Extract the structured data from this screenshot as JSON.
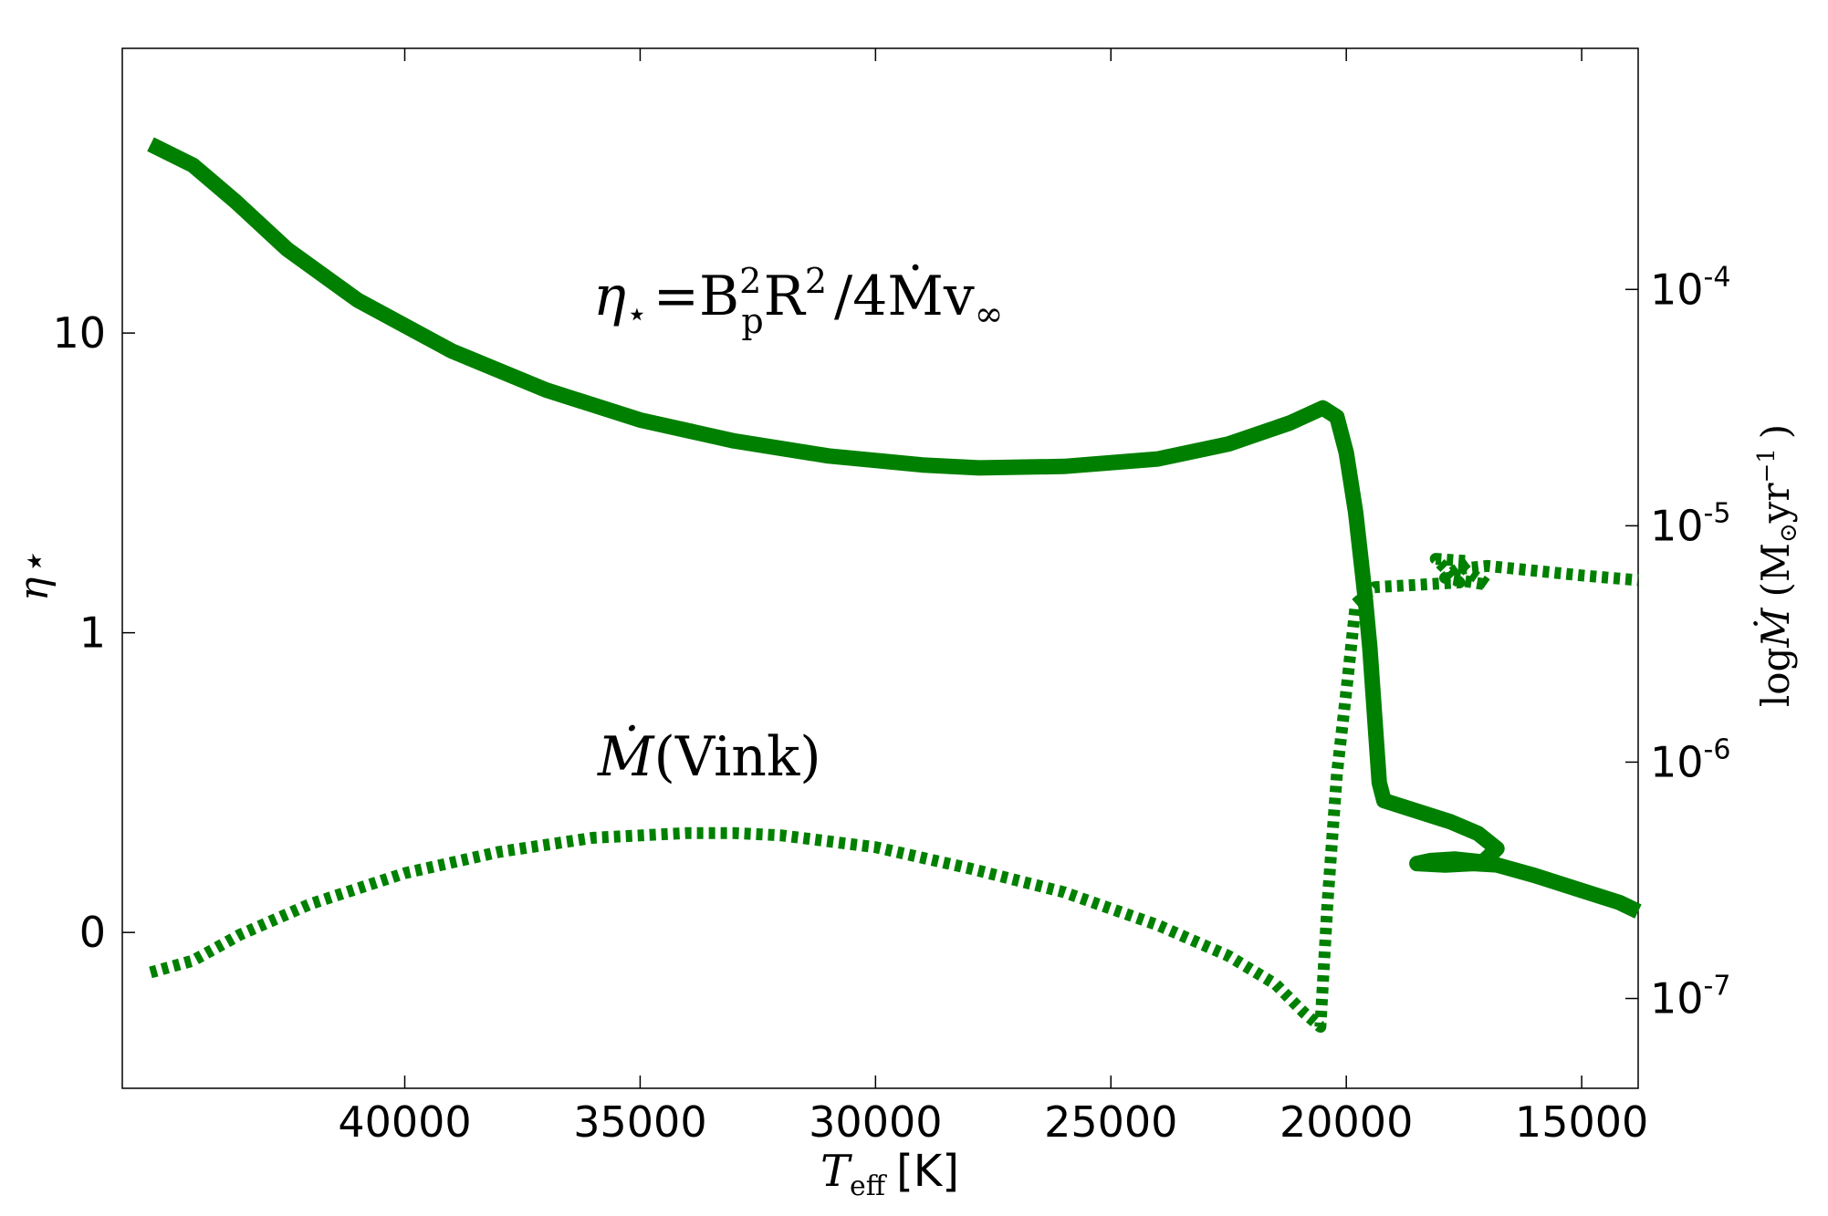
{
  "chart_data": {
    "type": "line",
    "xlabel": {
      "symbol": "T",
      "subscript": "eff",
      "unit": "[K]"
    },
    "x_range": [
      46000,
      13800
    ],
    "x_ticks": [
      "40000",
      "35000",
      "30000",
      "25000",
      "20000",
      "15000"
    ],
    "x_tick_values": [
      40000,
      35000,
      30000,
      25000,
      20000,
      15000
    ],
    "left_axis": {
      "label": "η⋆",
      "range": [
        -0.52,
        2.95
      ],
      "ticks": [
        "10",
        "1",
        "0"
      ],
      "tick_values": [
        2,
        1,
        0
      ]
    },
    "right_axis": {
      "label": {
        "prefix": "log",
        "symbol": "Ṁ",
        "unit_open": "(M",
        "unit_sub": "⊙",
        "unit_mid": "yr",
        "unit_sup": "−1",
        "unit_close": ")"
      },
      "ticks": [
        {
          "base": "10",
          "exp": "-4"
        },
        {
          "base": "10",
          "exp": "-5"
        },
        {
          "base": "10",
          "exp": "-6"
        },
        {
          "base": "10",
          "exp": "-7"
        }
      ],
      "tick_log_values": [
        -4,
        -5,
        -6,
        -7
      ],
      "log_range": [
        -7.38,
        -2.98
      ]
    },
    "annotations": {
      "eta_formula": {
        "lhs": "η",
        "lhs_sub": "⋆",
        "eq": "=B",
        "b_sup": "2",
        "b_sub": "p",
        "r": "R",
        "r_sup": "2",
        "mid": "/4",
        "mdot": "Ṁ",
        "v": "v",
        "v_sub": "∞"
      },
      "mdot_label": {
        "symbol": "Ṁ",
        "text": "(Vink)"
      }
    },
    "series": [
      {
        "name": "eta_star",
        "style": "solid",
        "color": "#008000",
        "axis": "left",
        "points": [
          [
            45400,
            2.63
          ],
          [
            44500,
            2.56
          ],
          [
            43600,
            2.44
          ],
          [
            42500,
            2.28
          ],
          [
            41000,
            2.11
          ],
          [
            39000,
            1.94
          ],
          [
            37000,
            1.81
          ],
          [
            35000,
            1.71
          ],
          [
            33000,
            1.64
          ],
          [
            31000,
            1.59
          ],
          [
            29000,
            1.56
          ],
          [
            27800,
            1.55
          ],
          [
            26000,
            1.555
          ],
          [
            24000,
            1.58
          ],
          [
            22500,
            1.63
          ],
          [
            21200,
            1.7
          ],
          [
            20500,
            1.75
          ],
          [
            20200,
            1.72
          ],
          [
            20000,
            1.6
          ],
          [
            19800,
            1.4
          ],
          [
            19600,
            1.12
          ],
          [
            19500,
            0.95
          ],
          [
            19300,
            0.5
          ],
          [
            19200,
            0.44
          ],
          [
            18600,
            0.41
          ],
          [
            17800,
            0.37
          ],
          [
            17200,
            0.33
          ],
          [
            16800,
            0.28
          ],
          [
            17100,
            0.235
          ],
          [
            17700,
            0.245
          ],
          [
            18200,
            0.24
          ],
          [
            18500,
            0.23
          ],
          [
            17900,
            0.225
          ],
          [
            17300,
            0.23
          ],
          [
            16800,
            0.225
          ],
          [
            16000,
            0.19
          ],
          [
            15000,
            0.14
          ],
          [
            14200,
            0.1
          ],
          [
            13800,
            0.07
          ]
        ]
      },
      {
        "name": "mdot_vink",
        "style": "dotted",
        "color": "#008000",
        "axis": "right",
        "points": [
          [
            45400,
            -6.89
          ],
          [
            44500,
            -6.84
          ],
          [
            43500,
            -6.73
          ],
          [
            42000,
            -6.6
          ],
          [
            40000,
            -6.47
          ],
          [
            38000,
            -6.38
          ],
          [
            36000,
            -6.32
          ],
          [
            34000,
            -6.3
          ],
          [
            33000,
            -6.3
          ],
          [
            32000,
            -6.31
          ],
          [
            30000,
            -6.36
          ],
          [
            28000,
            -6.45
          ],
          [
            26000,
            -6.55
          ],
          [
            24000,
            -6.69
          ],
          [
            22500,
            -6.82
          ],
          [
            21500,
            -6.94
          ],
          [
            20900,
            -7.06
          ],
          [
            20550,
            -7.12
          ],
          [
            20400,
            -6.6
          ],
          [
            20200,
            -6.05
          ],
          [
            20000,
            -5.7
          ],
          [
            19800,
            -5.33
          ],
          [
            19400,
            -5.26
          ],
          [
            18500,
            -5.25
          ],
          [
            17600,
            -5.24
          ],
          [
            18100,
            -5.14
          ],
          [
            17400,
            -5.15
          ],
          [
            17900,
            -5.22
          ],
          [
            17000,
            -5.25
          ],
          [
            17500,
            -5.18
          ],
          [
            17000,
            -5.17
          ],
          [
            16000,
            -5.19
          ],
          [
            15000,
            -5.21
          ],
          [
            13800,
            -5.23
          ]
        ]
      }
    ]
  }
}
